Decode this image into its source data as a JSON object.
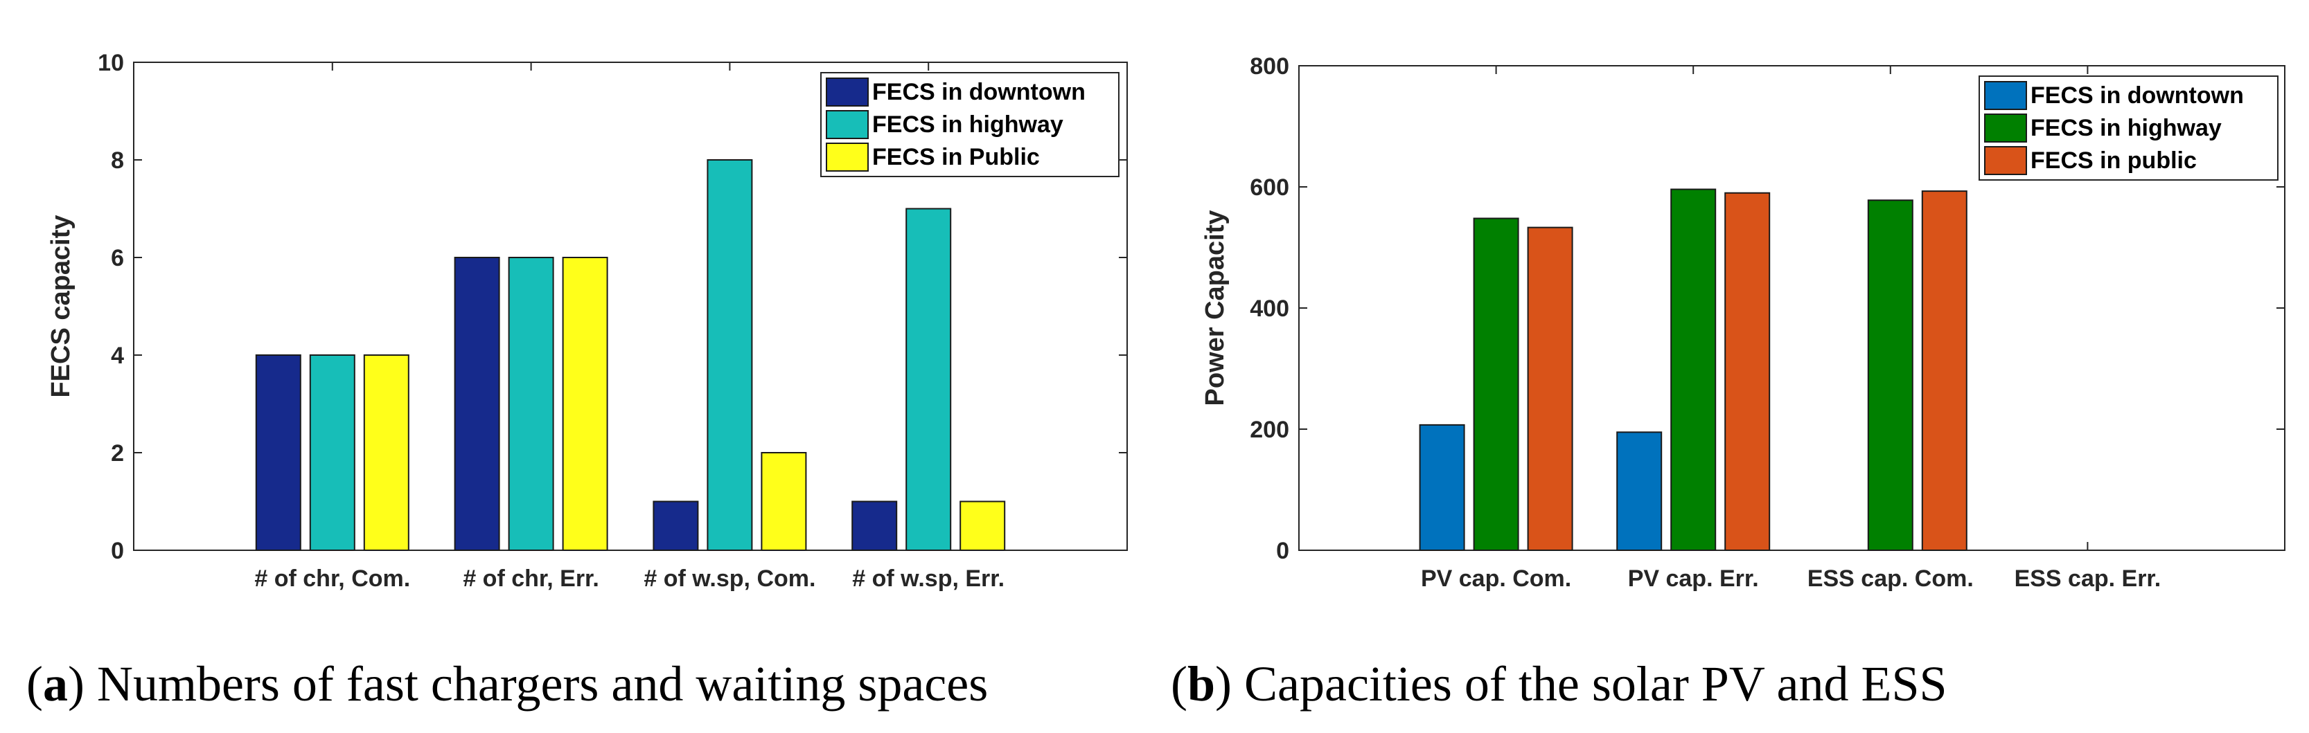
{
  "chart_data": [
    {
      "type": "bar",
      "categories": [
        "# of chr, Com.",
        "# of chr, Err.",
        "# of w.sp, Com.",
        "# of w.sp, Err."
      ],
      "series": [
        {
          "name": "FECS in downtown",
          "values": [
            4,
            6,
            1,
            1
          ],
          "color": "#162A8C"
        },
        {
          "name": "FECS in highway",
          "values": [
            4,
            6,
            8,
            7
          ],
          "color": "#17BEB8"
        },
        {
          "name": "FECS in Public",
          "values": [
            4,
            6,
            2,
            1
          ],
          "color": "#FFFF1A"
        }
      ],
      "ylabel": "FECS capacity",
      "xlabel": "",
      "ylim": [
        0,
        10
      ],
      "yticks": [
        "0",
        "2",
        "4",
        "6",
        "8",
        "10"
      ],
      "legend_position": "top-right",
      "caption": {
        "letter": "a",
        "text": "Numbers of fast chargers and waiting spaces"
      }
    },
    {
      "type": "bar",
      "categories": [
        "PV cap. Com.",
        "PV cap. Err.",
        "ESS cap. Com.",
        "ESS cap. Err."
      ],
      "series": [
        {
          "name": "FECS in downtown",
          "values": [
            207,
            195,
            0,
            0
          ],
          "color": "#0072BD"
        },
        {
          "name": "FECS in highway",
          "values": [
            548,
            596,
            578,
            0
          ],
          "color": "#008000"
        },
        {
          "name": "FECS in public",
          "values": [
            533,
            590,
            593,
            0
          ],
          "color": "#D95319"
        }
      ],
      "ylabel": "Power Capacity",
      "xlabel": "",
      "ylim": [
        0,
        800
      ],
      "yticks": [
        "0",
        "200",
        "400",
        "600",
        "800"
      ],
      "legend_position": "top-right",
      "caption": {
        "letter": "b",
        "text": "Capacities of the solar PV and ESS"
      }
    }
  ]
}
